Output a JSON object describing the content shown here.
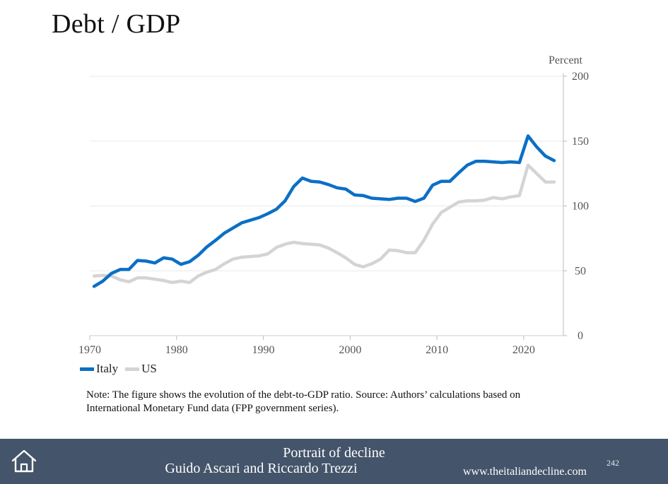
{
  "slide": {
    "title": "Debt / GDP",
    "note_line1": "Note: The figure shows the evolution of the debt-to-GDP ratio. Source: Authors’ calculations based on",
    "note_line2": "International Monetary Fund data (FPP government series).",
    "footer_line1": "Portrait of decline",
    "footer_line2": "Guido Ascari and Riccardo Trezzi",
    "website": "www.theitaliandecline.com",
    "page_number": "242",
    "home_icon": "home-icon"
  },
  "colors": {
    "italy": "#0b6fc6",
    "us": "#d4d4d4",
    "footer": "#44546a",
    "grid": "#e9e9e9"
  },
  "chart_data": {
    "type": "line",
    "title": "",
    "ylabel": "Percent",
    "xlim": [
      1970,
      2024
    ],
    "ylim": [
      0,
      200
    ],
    "xticks": [
      1970,
      1980,
      1990,
      2000,
      2010,
      2020
    ],
    "yticks": [
      0,
      50,
      100,
      150,
      200
    ],
    "y_axis_side": "right",
    "grid": "horizontal",
    "legend": "bottom-left",
    "series": [
      {
        "name": "Italy",
        "x": [
          1970.5,
          1971.5,
          1972.5,
          1973.5,
          1974.5,
          1975.5,
          1976.5,
          1977.5,
          1978.5,
          1979.5,
          1980.5,
          1981.5,
          1982.5,
          1983.5,
          1984.5,
          1985.5,
          1986.5,
          1987.5,
          1988.5,
          1989.5,
          1990.5,
          1991.5,
          1992.5,
          1993.5,
          1994.5,
          1995.5,
          1996.5,
          1997.5,
          1998.5,
          1999.5,
          2000.5,
          2001.5,
          2002.5,
          2003.5,
          2004.5,
          2005.5,
          2006.5,
          2007.5,
          2008.5,
          2009.5,
          2010.5,
          2011.5,
          2012.5,
          2013.5,
          2014.5,
          2015.5,
          2016.5,
          2017.5,
          2018.5,
          2019.5,
          2020.5,
          2021.5,
          2022.5,
          2023.5
        ],
        "values": [
          38,
          42,
          48,
          51,
          51,
          58,
          57.5,
          56,
          60,
          59,
          55,
          57,
          62,
          68.5,
          73.5,
          79,
          83,
          87,
          89,
          91,
          94,
          97.5,
          104,
          115,
          121.5,
          119,
          118.5,
          116.5,
          114,
          113,
          108.5,
          108,
          106,
          105.5,
          105,
          106,
          106,
          103.5,
          106,
          116,
          119,
          119,
          125.5,
          131.5,
          134.5,
          134.5,
          134,
          133.5,
          134,
          133.5,
          154,
          145.5,
          138.5,
          135
        ]
      },
      {
        "name": "US",
        "x": [
          1970.5,
          1971.5,
          1972.5,
          1973.5,
          1974.5,
          1975.5,
          1976.5,
          1977.5,
          1978.5,
          1979.5,
          1980.5,
          1981.5,
          1982.5,
          1983.5,
          1984.5,
          1985.5,
          1986.5,
          1987.5,
          1988.5,
          1989.5,
          1990.5,
          1991.5,
          1992.5,
          1993.5,
          1994.5,
          1995.5,
          1996.5,
          1997.5,
          1998.5,
          1999.5,
          2000.5,
          2001.5,
          2002.5,
          2003.5,
          2004.5,
          2005.5,
          2006.5,
          2007.5,
          2008.5,
          2009.5,
          2010.5,
          2011.5,
          2012.5,
          2013.5,
          2014.5,
          2015.5,
          2016.5,
          2017.5,
          2018.5,
          2019.5,
          2020.5,
          2021.5,
          2022.5,
          2023.5
        ],
        "values": [
          46,
          46.5,
          46,
          43,
          41.5,
          44.5,
          44.5,
          43.5,
          42.5,
          41,
          42,
          41,
          46,
          49,
          51,
          55.5,
          59,
          60.5,
          61,
          61.5,
          63,
          68,
          70.5,
          72,
          71,
          70.5,
          70,
          67.5,
          64,
          60,
          55,
          53,
          55.5,
          59,
          66,
          65.5,
          64,
          64,
          73.5,
          86,
          95,
          99,
          103,
          104,
          104,
          104.5,
          106.5,
          105.5,
          107,
          108,
          131.5,
          125,
          118.5,
          118.5
        ]
      }
    ]
  }
}
